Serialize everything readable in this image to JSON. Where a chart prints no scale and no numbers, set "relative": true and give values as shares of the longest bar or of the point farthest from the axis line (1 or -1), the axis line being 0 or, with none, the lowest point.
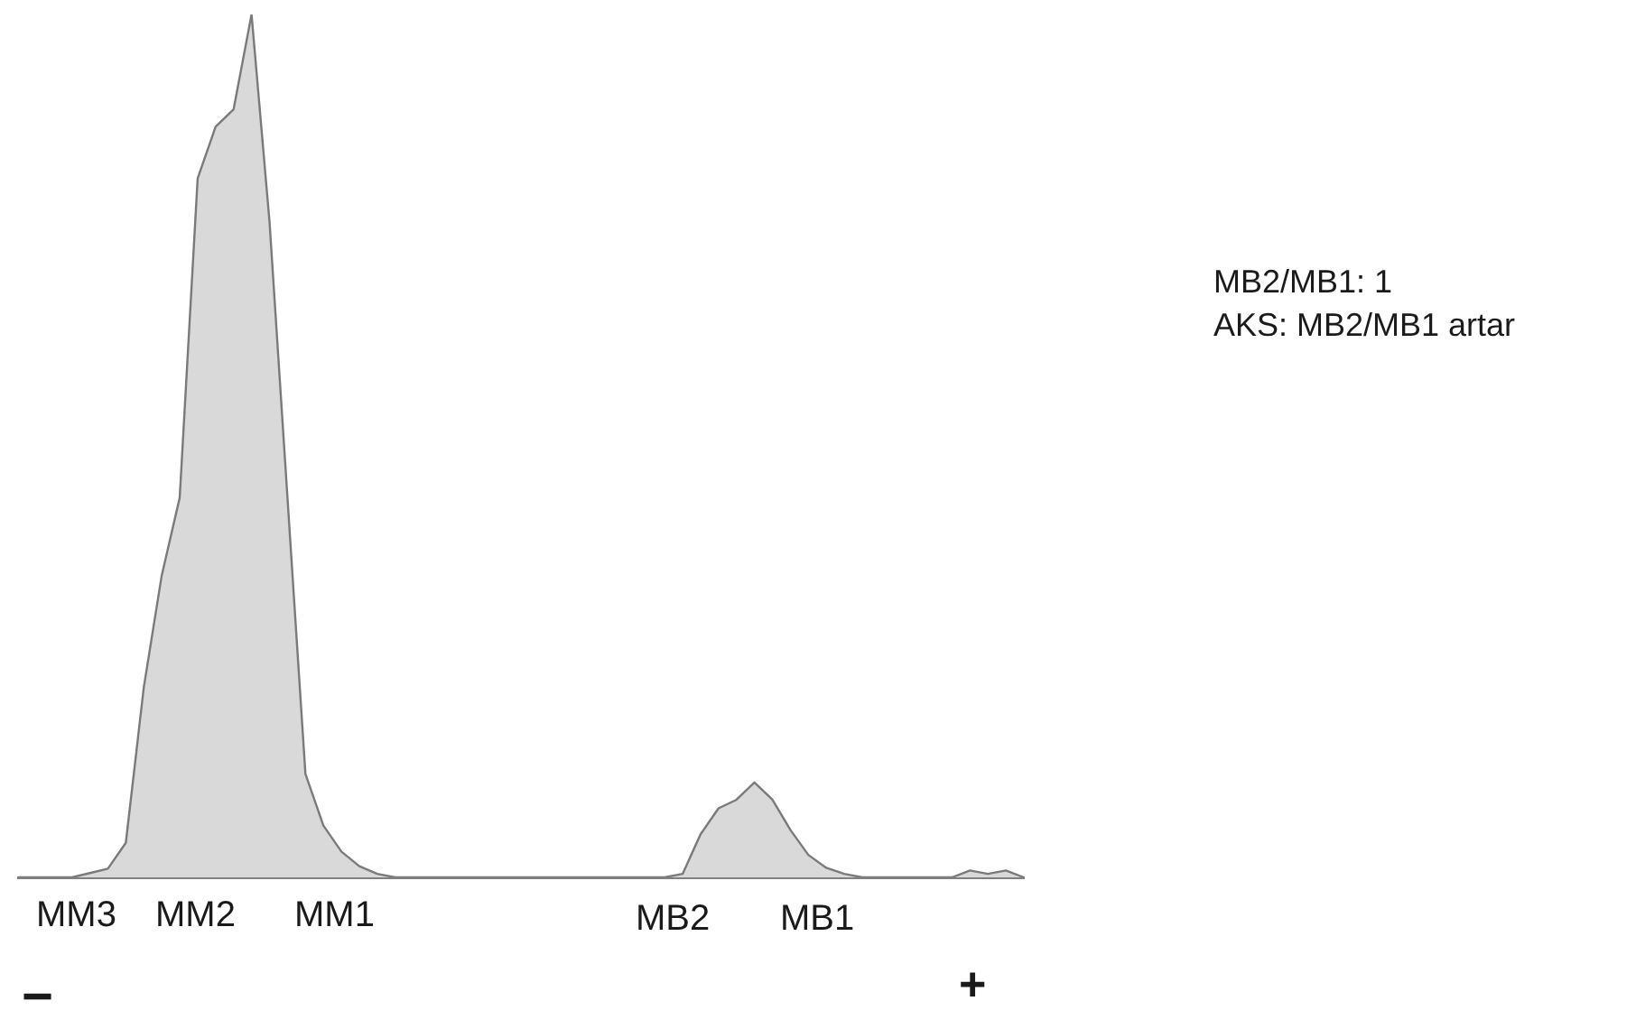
{
  "chart_data": {
    "type": "area",
    "relative": true,
    "legend": false,
    "grid": false,
    "categories": [
      null,
      null,
      null,
      null,
      null,
      null,
      null,
      null,
      null,
      null,
      null,
      null,
      null,
      null,
      null,
      null,
      null,
      null,
      null,
      null,
      null,
      null,
      null,
      null,
      null,
      null,
      null,
      null,
      null,
      null,
      null,
      null,
      null,
      null,
      null,
      null,
      null,
      null,
      null,
      null,
      null,
      null,
      null,
      null,
      null,
      null,
      null,
      null,
      null,
      null,
      null,
      null,
      null,
      null,
      null,
      null,
      null
    ],
    "series": [
      {
        "color": "#d9d9d9",
        "values": [
          0,
          0,
          0,
          0,
          0.005,
          0.01,
          0.04,
          0.22,
          0.35,
          0.44,
          0.81,
          0.87,
          0.89,
          1,
          0.76,
          0.44,
          0.12,
          0.06,
          0.03,
          0.013,
          0.004,
          0,
          0,
          0,
          0,
          0,
          0,
          0,
          0,
          0,
          0,
          0,
          0,
          0,
          0,
          0,
          0,
          0.004,
          0.05,
          0.08,
          0.09,
          0.11,
          0.09,
          0.055,
          0.026,
          0.011,
          0.004,
          0,
          0,
          0,
          0,
          0,
          0,
          0.008,
          0.004,
          0.008,
          0
        ]
      }
    ],
    "annotations": [
      "MM3",
      "MM2",
      "MM1",
      "MB2",
      "MB1",
      "−",
      "+",
      "MB2/MB1: 1",
      "AKS: MB2/MB1 artar"
    ]
  }
}
